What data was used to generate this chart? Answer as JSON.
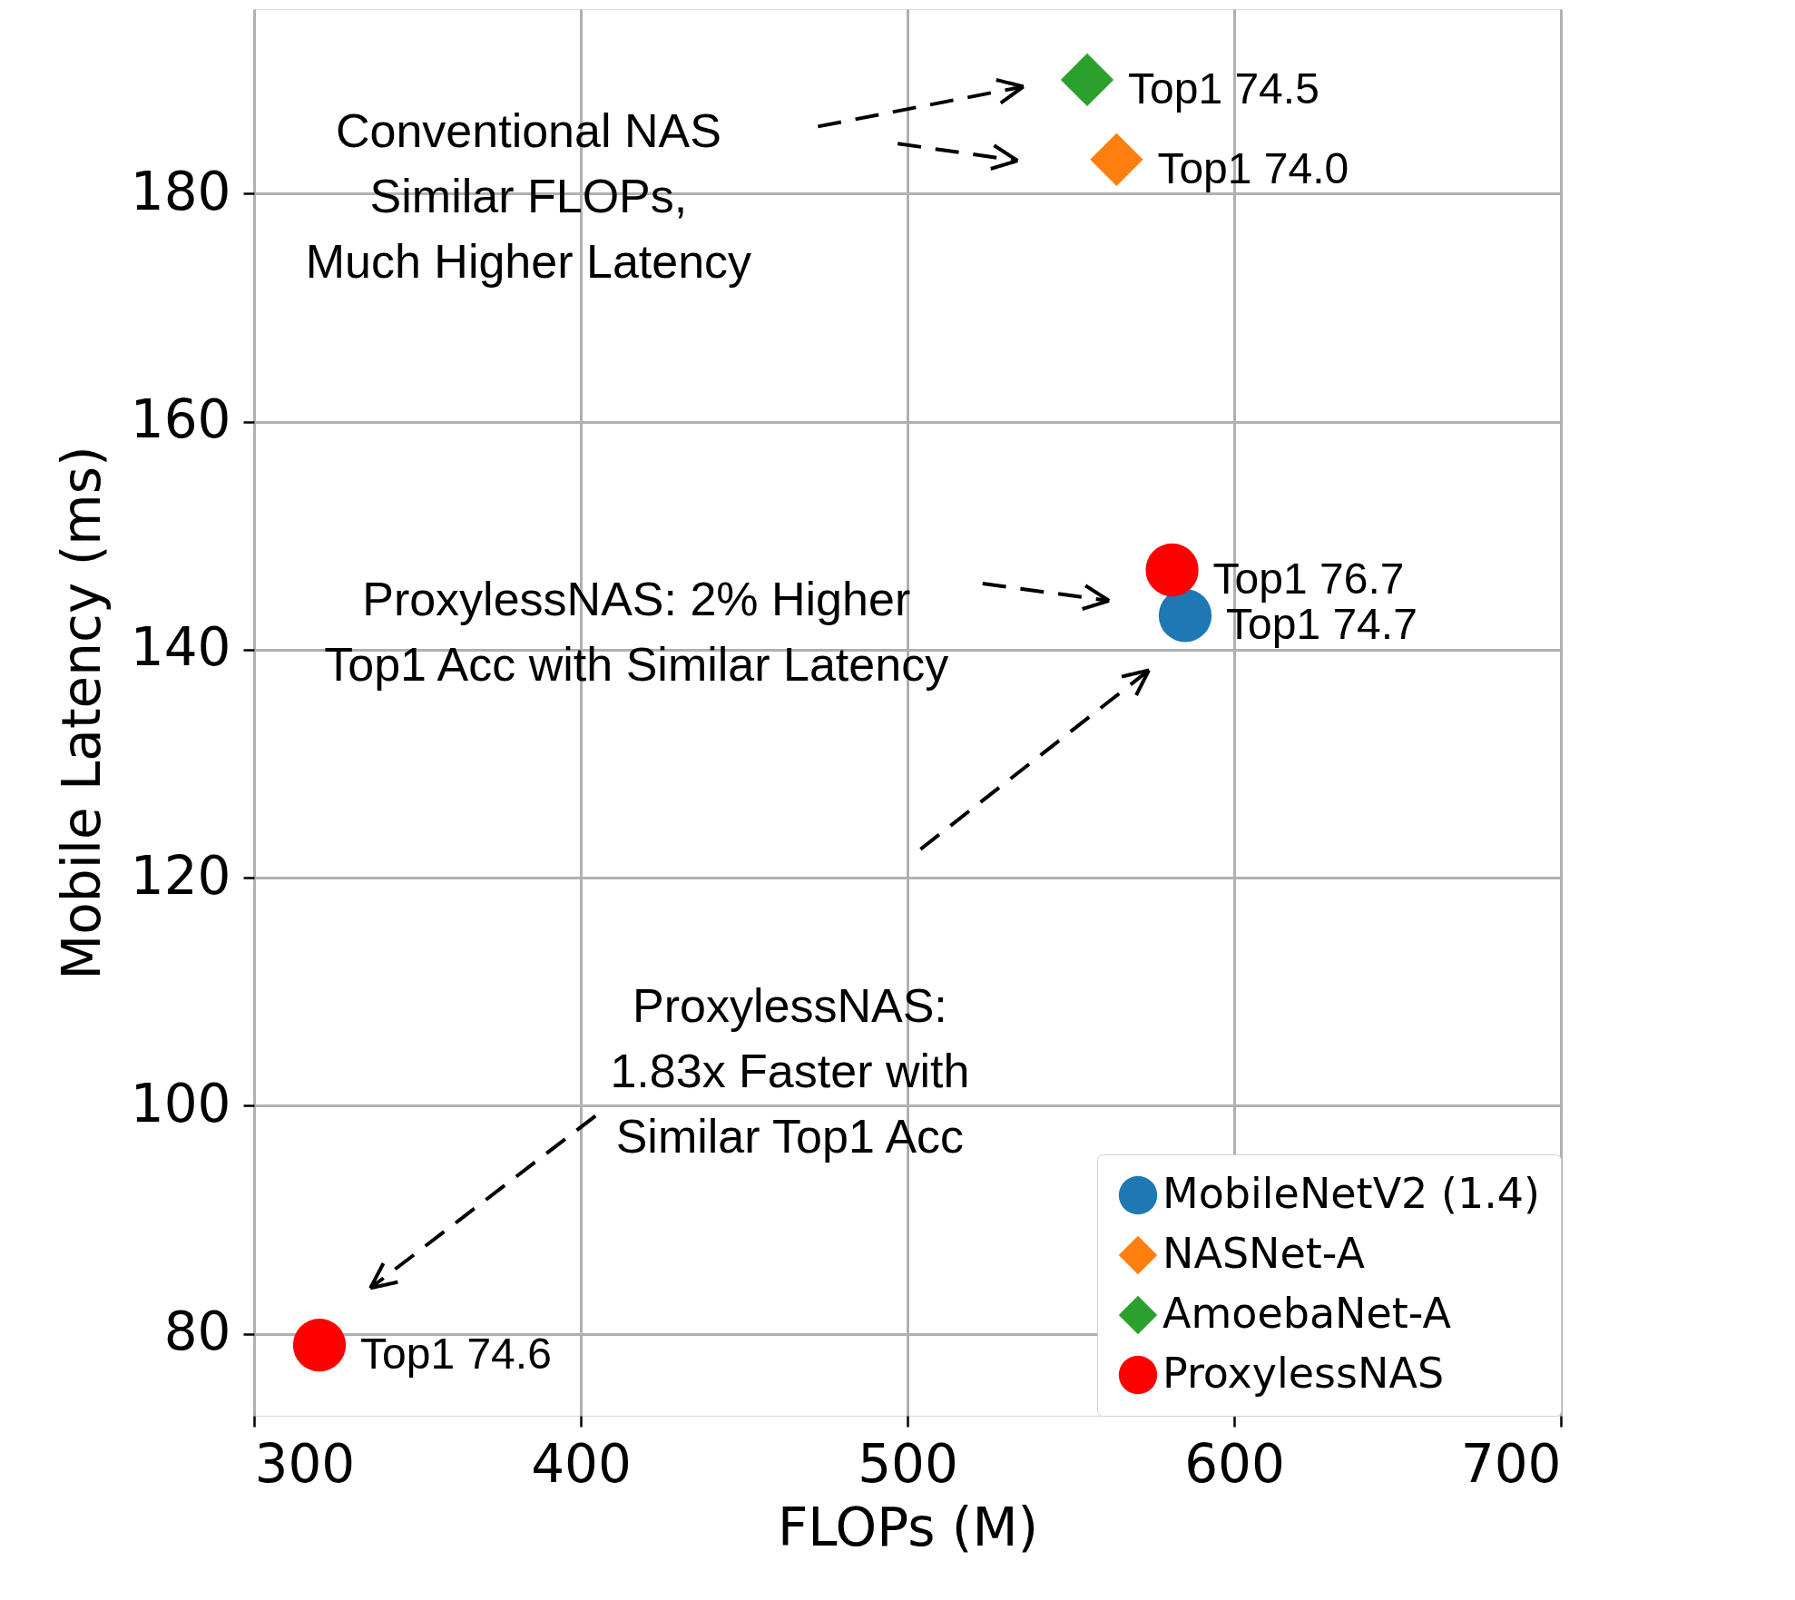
{
  "chart_data": {
    "type": "scatter",
    "xlabel": "FLOPs (M)",
    "ylabel": "Mobile Latency (ms)",
    "xlim": [
      300,
      700
    ],
    "ylim": [
      72.8,
      196.2
    ],
    "xticks": [
      300,
      400,
      500,
      600,
      700
    ],
    "yticks": [
      80,
      100,
      120,
      140,
      160,
      180
    ],
    "grid": true,
    "legend": "bottom right",
    "series": [
      {
        "name": "MobileNetV2 (1.4)",
        "color": "#1f77b4",
        "marker": "circle",
        "x": [
          585
        ],
        "values": [
          143
        ],
        "value_labels": [
          "Top1 74.7"
        ]
      },
      {
        "name": "NASNet-A",
        "color": "#ff7f0e",
        "marker": "diamond",
        "x": [
          564
        ],
        "values": [
          183
        ],
        "value_labels": [
          "Top1 74.0"
        ]
      },
      {
        "name": "AmoebaNet-A",
        "color": "#2ca02c",
        "marker": "diamond",
        "x": [
          555
        ],
        "values": [
          190
        ],
        "value_labels": [
          "Top1 74.5"
        ]
      },
      {
        "name": "ProxylessNAS",
        "color": "#ff0000",
        "marker": "circle",
        "x": [
          581,
          320
        ],
        "values": [
          147,
          79
        ],
        "value_labels": [
          "Top1 76.7",
          "Top1 74.6"
        ]
      }
    ],
    "annotations": [
      "Conventional NAS\nSimilar FLOPs,\nMuch Higher Latency",
      "ProxylessNAS: 2% Higher\nTop1 Acc with Similar Latency",
      "ProxylessNAS:\n1.83x Faster with\nSimilar Top1 Acc"
    ]
  }
}
